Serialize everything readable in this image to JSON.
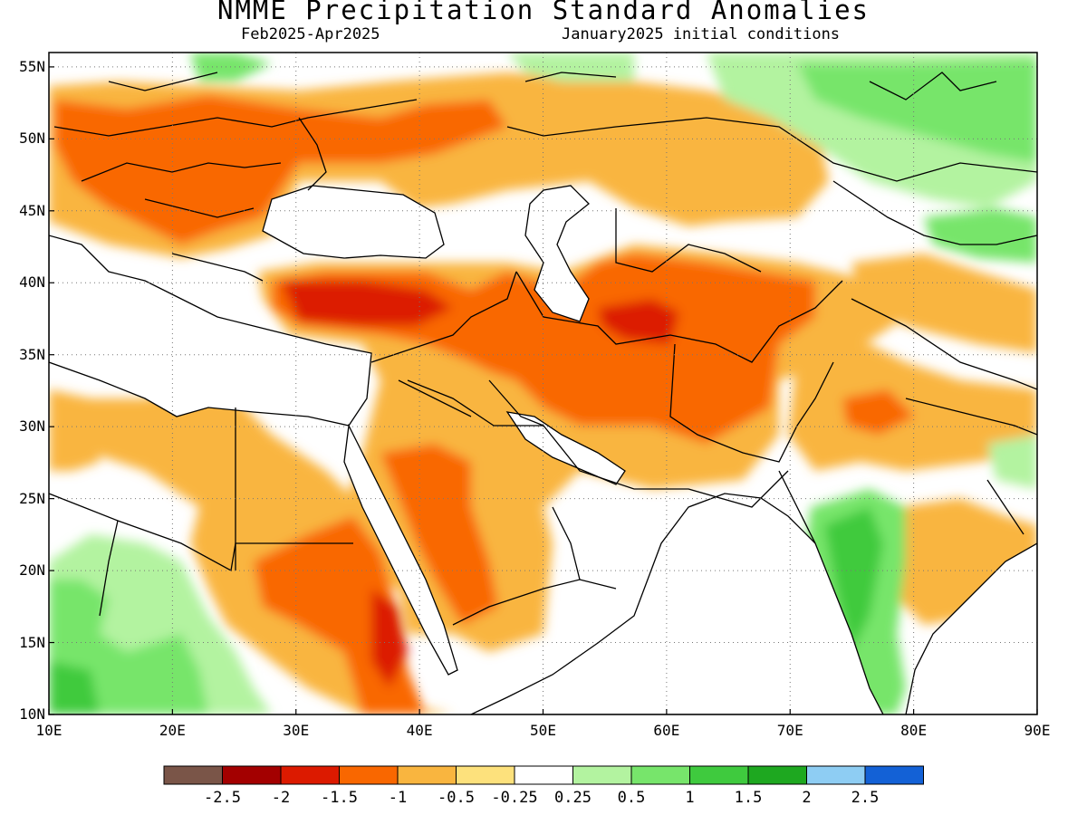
{
  "title": "NMME Precipitation Standard Anomalies",
  "subtitle_left": "Feb2025-Apr2025",
  "subtitle_right": "January2025 initial conditions",
  "map": {
    "lon_range": [
      10,
      90
    ],
    "lat_range": [
      10,
      56
    ],
    "lon_ticks": [
      "10E",
      "20E",
      "30E",
      "40E",
      "50E",
      "60E",
      "70E",
      "80E",
      "90E"
    ],
    "lat_ticks": [
      "10N",
      "15N",
      "20N",
      "25N",
      "30N",
      "35N",
      "40N",
      "45N",
      "50N",
      "55N"
    ],
    "grid_style": "dotted"
  },
  "legend": {
    "colors": [
      "#7a5548",
      "#a30000",
      "#dc1a00",
      "#f96700",
      "#f9b53f",
      "#fde17c",
      "#ffffff",
      "#b3f3a0",
      "#77e56b",
      "#3fca3e",
      "#1ea820",
      "#8ecdf3",
      "#1361d6"
    ],
    "labels": [
      "-2.5",
      "-2",
      "-1.5",
      "-1",
      "-0.5",
      "-0.25",
      "0.25",
      "0.5",
      "1",
      "1.5",
      "2",
      "2.5"
    ]
  }
}
